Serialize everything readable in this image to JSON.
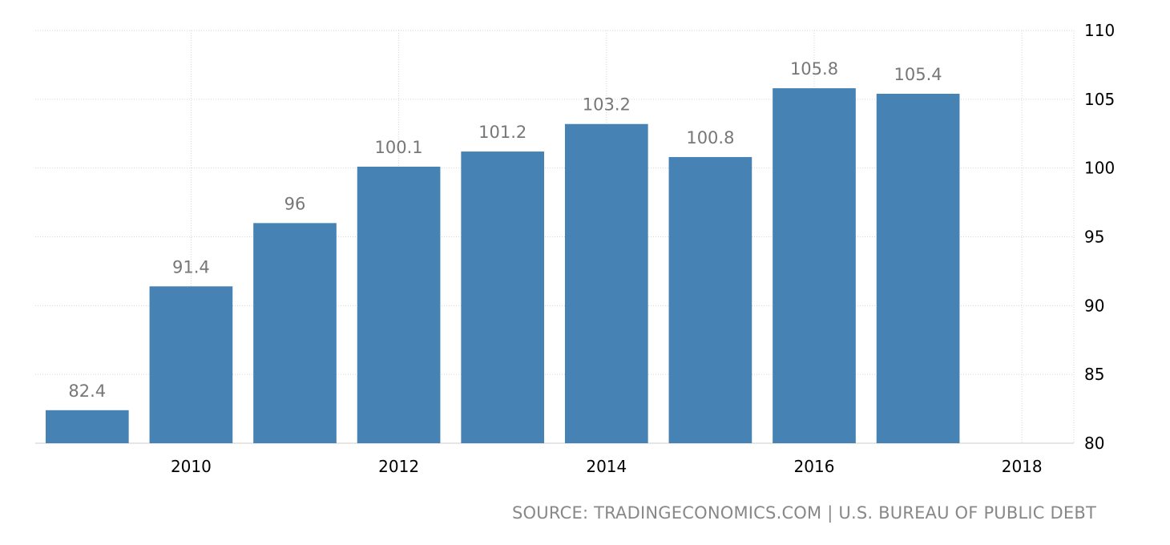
{
  "source_text": "SOURCE: TRADINGECONOMICS.COM | U.S. BUREAU OF PUBLIC DEBT",
  "chart_data": {
    "type": "bar",
    "x": [
      2009,
      2010,
      2011,
      2012,
      2013,
      2014,
      2015,
      2016,
      2017
    ],
    "values": [
      82.4,
      91.4,
      96,
      100.1,
      101.2,
      103.2,
      100.8,
      105.8,
      105.4
    ],
    "data_labels": [
      "82.4",
      "91.4",
      "96",
      "100.1",
      "101.2",
      "103.2",
      "100.8",
      "105.8",
      "105.4"
    ],
    "xticks": [
      2010,
      2012,
      2014,
      2016,
      2018
    ],
    "yticks": [
      80,
      85,
      90,
      95,
      100,
      105,
      110
    ],
    "xlim": [
      2008.5,
      2018.5
    ],
    "ylim": [
      80,
      110
    ],
    "y_axis_position": "right",
    "grid": true,
    "bar_color": "#4682b4"
  }
}
